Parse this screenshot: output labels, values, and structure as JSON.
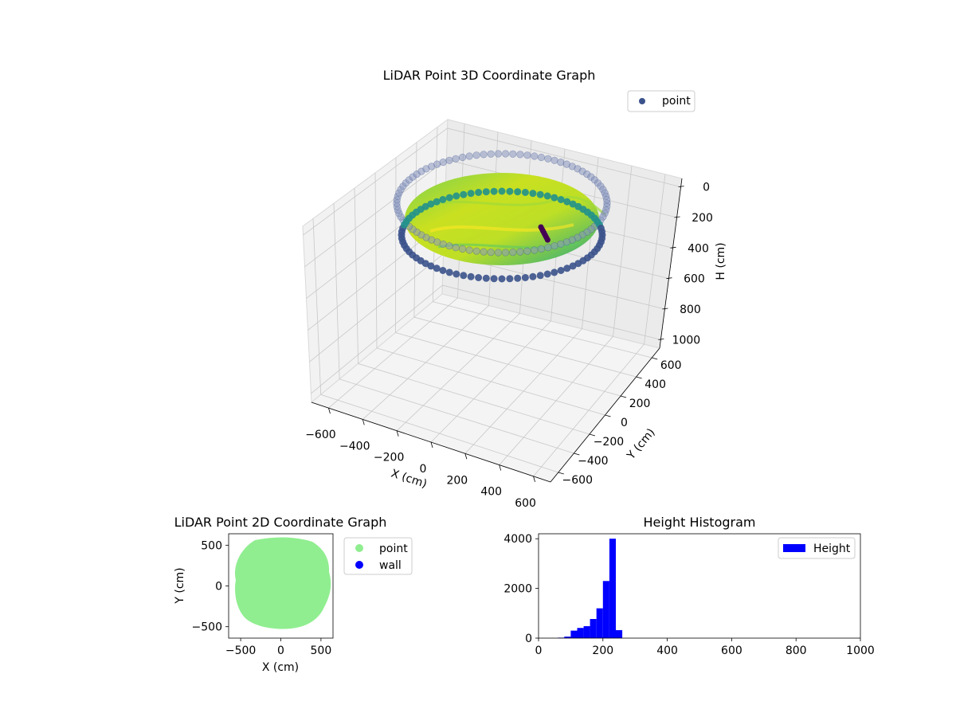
{
  "chart_data": [
    {
      "type": "scatter3d",
      "title": "LiDAR Point 3D Coordinate Graph",
      "xlabel": "X (cm)",
      "ylabel": "Y (cm)",
      "zlabel": "H (cm)",
      "xlim": [
        -650,
        650
      ],
      "ylim": [
        -650,
        650
      ],
      "zlim": [
        1000,
        0
      ],
      "xticks": [
        "−600",
        "−400",
        "−200",
        "0",
        "200",
        "400",
        "600"
      ],
      "yticks": [
        "−600",
        "−400",
        "−200",
        "0",
        "200",
        "400",
        "600"
      ],
      "zticks": [
        "0",
        "200",
        "400",
        "600",
        "800",
        "1000"
      ],
      "legend": [
        {
          "label": "point",
          "color": "#3b528b"
        }
      ],
      "legend_position": "top-right",
      "colormap": "viridis",
      "series": {
        "shape": "room outline ring, radius ~600 cm",
        "wall_height_range": [
          60,
          260
        ],
        "pole": {
          "x": 280,
          "y": 120,
          "h_top": 60,
          "h_bottom": 220
        }
      }
    },
    {
      "type": "scatter",
      "title": "LiDAR Point 2D Coordinate Graph",
      "xlabel": "X (cm)",
      "ylabel": "Y (cm)",
      "xlim": [
        -650,
        650
      ],
      "ylim": [
        -640,
        640
      ],
      "xticks": [
        "−500",
        "0",
        "500"
      ],
      "yticks": [
        "500",
        "0",
        "−500"
      ],
      "legend": [
        {
          "label": "point",
          "color": "#90ee90"
        },
        {
          "label": "wall",
          "color": "#0000ff"
        }
      ],
      "legend_position": "outside-right",
      "point_region_radius": 600
    },
    {
      "type": "bar",
      "title": "Height Histogram",
      "xlim": [
        0,
        1000
      ],
      "ylim": [
        0,
        4200
      ],
      "xticks": [
        "0",
        "200",
        "400",
        "600",
        "800",
        "1000"
      ],
      "yticks": [
        "0",
        "2000",
        "4000"
      ],
      "legend": [
        {
          "label": "Height",
          "color": "#0000ff"
        }
      ],
      "legend_position": "top-right",
      "bin_width": 20,
      "bins": [
        {
          "x": 60,
          "value": 20
        },
        {
          "x": 80,
          "value": 60
        },
        {
          "x": 100,
          "value": 300
        },
        {
          "x": 120,
          "value": 410
        },
        {
          "x": 140,
          "value": 480
        },
        {
          "x": 160,
          "value": 770
        },
        {
          "x": 180,
          "value": 1200
        },
        {
          "x": 200,
          "value": 2300
        },
        {
          "x": 220,
          "value": 4000
        },
        {
          "x": 240,
          "value": 320
        }
      ]
    }
  ]
}
